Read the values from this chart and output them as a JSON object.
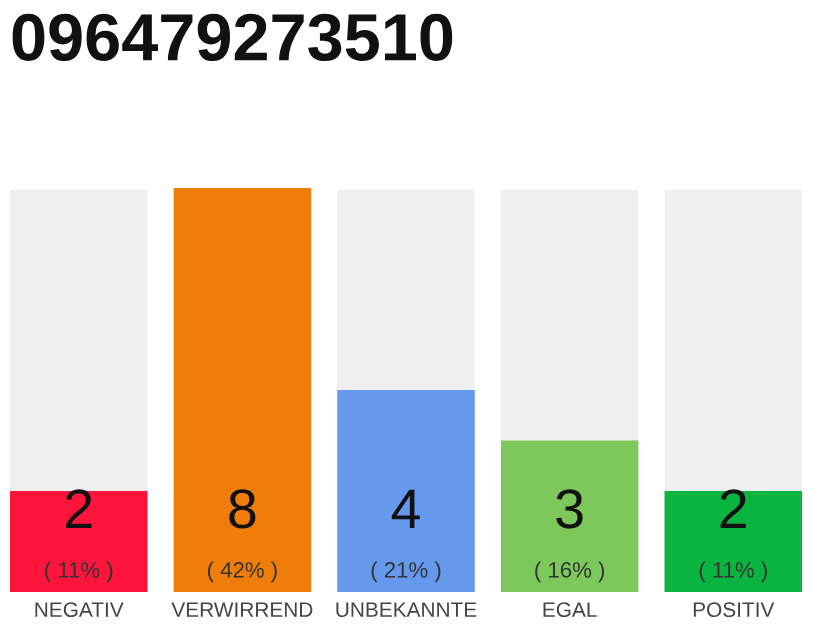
{
  "chart_data": {
    "type": "bar",
    "title": "096479273510",
    "categories": [
      "NEGATIV",
      "VERWIRREND",
      "UNBEKANNTE",
      "EGAL",
      "POSITIV"
    ],
    "values": [
      2,
      8,
      4,
      3,
      2
    ],
    "colors": [
      "#ff143c",
      "#f07d0a",
      "#6499ed",
      "#7dc85a",
      "#0ab441"
    ],
    "value_labels": [
      "2\n( 11% )",
      "8\n( 42% )",
      "4\n( 21% )",
      "3\n( 16% )",
      "2\n( 11% )"
    ],
    "ylim": [
      0,
      8
    ],
    "tick_labels": "x",
    "grid": false
  }
}
